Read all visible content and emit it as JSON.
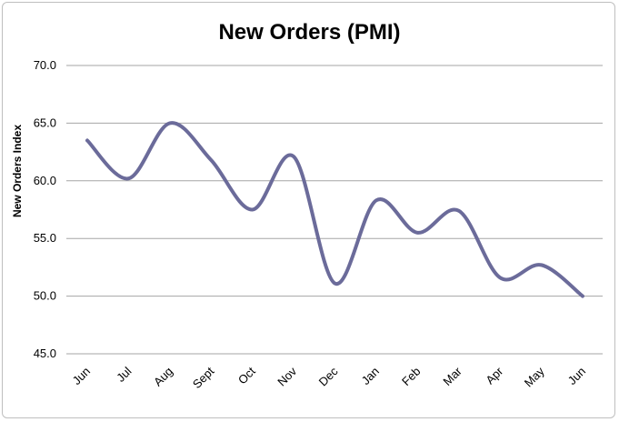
{
  "chart_data": {
    "type": "line",
    "title": "New Orders (PMI)",
    "xlabel": "",
    "ylabel": "New Orders Index",
    "categories": [
      "Jun",
      "Jul",
      "Aug",
      "Sept",
      "Oct",
      "Nov",
      "Dec",
      "Jan",
      "Feb",
      "Mar",
      "Apr",
      "May",
      "Jun"
    ],
    "series": [
      {
        "values": [
          63.5,
          60.2,
          65.0,
          61.8,
          57.5,
          62.1,
          51.1,
          58.3,
          55.5,
          57.4,
          51.6,
          52.7,
          50.0
        ]
      }
    ],
    "ylim": [
      45.0,
      70.0
    ],
    "yticks": [
      "45.0",
      "50.0",
      "55.0",
      "60.0",
      "65.0",
      "70.0"
    ],
    "grid": true,
    "line_color": "#6b6b9a"
  }
}
